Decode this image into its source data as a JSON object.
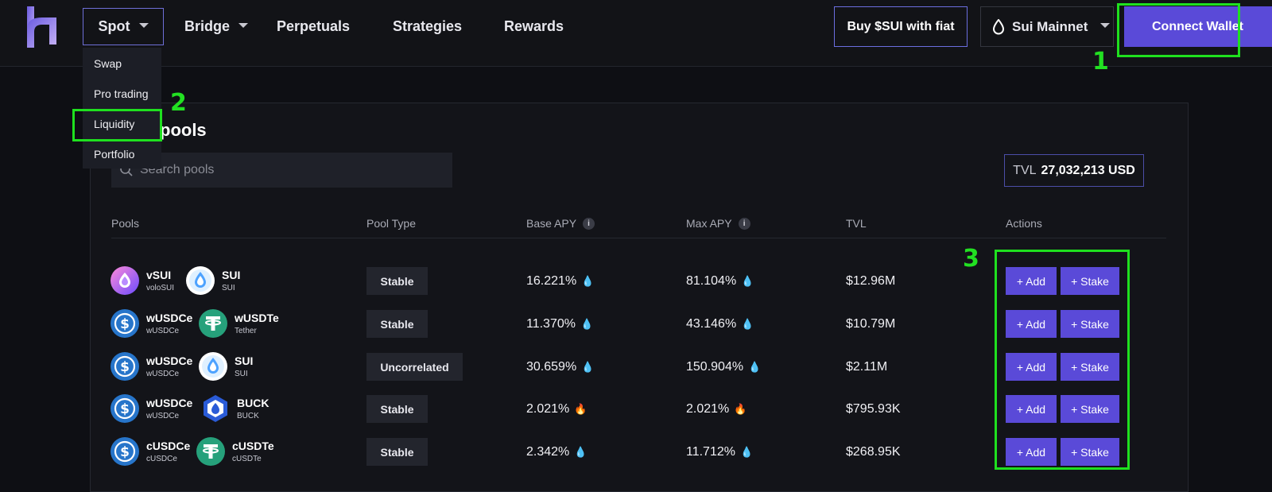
{
  "nav": {
    "items": [
      {
        "label": "Spot"
      },
      {
        "label": "Bridge"
      },
      {
        "label": "Perpetuals"
      },
      {
        "label": "Strategies"
      },
      {
        "label": "Rewards"
      }
    ],
    "buy_label": "Buy $SUI with fiat",
    "network_label": "Sui Mainnet",
    "connect_label": "Connect Wallet"
  },
  "dropdown": {
    "items": [
      "Swap",
      "Pro trading",
      "Liquidity",
      "Portfolio"
    ]
  },
  "annotations": [
    "1",
    "2",
    "3"
  ],
  "main": {
    "title": "pools",
    "search_placeholder": "Search pools",
    "tvl_label": "TVL",
    "tvl_value": "27,032,213 USD"
  },
  "table": {
    "headers": [
      "Pools",
      "Pool Type",
      "Base APY",
      "Max APY",
      "TVL",
      "Actions"
    ],
    "info_glyph": "i",
    "add_label": "+ Add",
    "stake_label": "+ Stake",
    "rows": [
      {
        "t1": {
          "sym": "vSUI",
          "name": "voloSUI",
          "icon": "volo-sui-icon"
        },
        "t2": {
          "sym": "SUI",
          "name": "SUI",
          "icon": "sui-icon"
        },
        "type": "Stable",
        "base": "16.221%",
        "base_icon": "droplet-icon",
        "max": "81.104%",
        "max_icon": "droplet-icon",
        "tvl": "$12.96M"
      },
      {
        "t1": {
          "sym": "wUSDCe",
          "name": "wUSDCe",
          "icon": "usdc-icon"
        },
        "t2": {
          "sym": "wUSDTe",
          "name": "Tether",
          "icon": "tether-icon"
        },
        "type": "Stable",
        "base": "11.370%",
        "base_icon": "droplet-icon",
        "max": "43.146%",
        "max_icon": "droplet-icon",
        "tvl": "$10.79M"
      },
      {
        "t1": {
          "sym": "wUSDCe",
          "name": "wUSDCe",
          "icon": "usdc-icon"
        },
        "t2": {
          "sym": "SUI",
          "name": "SUI",
          "icon": "sui-icon"
        },
        "type": "Uncorrelated",
        "base": "30.659%",
        "base_icon": "droplet-icon",
        "max": "150.904%",
        "max_icon": "droplet-icon",
        "tvl": "$2.11M"
      },
      {
        "t1": {
          "sym": "wUSDCe",
          "name": "wUSDCe",
          "icon": "usdc-icon"
        },
        "t2": {
          "sym": "BUCK",
          "name": "BUCK",
          "icon": "buck-icon"
        },
        "type": "Stable",
        "base": "2.021%",
        "base_icon": "fire-icon",
        "max": "2.021%",
        "max_icon": "fire-icon",
        "tvl": "$795.93K"
      },
      {
        "t1": {
          "sym": "cUSDCe",
          "name": "cUSDCe",
          "icon": "usdc-icon"
        },
        "t2": {
          "sym": "cUSDTe",
          "name": "cUSDTe",
          "icon": "tether-icon"
        },
        "type": "Stable",
        "base": "2.342%",
        "base_icon": "droplet-icon",
        "max": "11.712%",
        "max_icon": "droplet-icon",
        "tvl": "$268.95K"
      }
    ]
  },
  "colors": {
    "accent": "#5a4ad8",
    "annotation": "#1fe01f",
    "background": "#0e0f14",
    "panel": "#131419"
  }
}
